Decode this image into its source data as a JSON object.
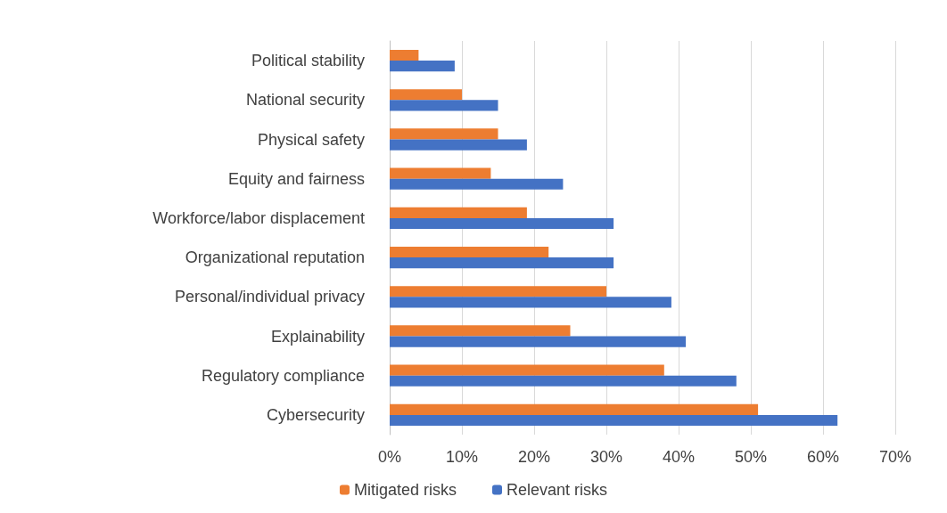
{
  "chart_data": {
    "type": "bar",
    "orientation": "horizontal",
    "categories": [
      "Political stability",
      "National security",
      "Physical safety",
      "Equity and fairness",
      "Workforce/labor displacement",
      "Organizational reputation",
      "Personal/individual privacy",
      "Explainability",
      "Regulatory compliance",
      "Cybersecurity"
    ],
    "series": [
      {
        "name": "Mitigated risks",
        "color": "#ed7d31",
        "values": [
          4,
          10,
          15,
          14,
          19,
          22,
          30,
          25,
          38,
          51
        ]
      },
      {
        "name": "Relevant risks",
        "color": "#4472c4",
        "values": [
          9,
          15,
          19,
          24,
          31,
          31,
          39,
          41,
          48,
          62
        ]
      }
    ],
    "xlim": [
      0,
      70
    ],
    "xticks": [
      {
        "value": 0,
        "label": "0%"
      },
      {
        "value": 10,
        "label": "10%"
      },
      {
        "value": 20,
        "label": "20%"
      },
      {
        "value": 30,
        "label": "30%"
      },
      {
        "value": 40,
        "label": "40%"
      },
      {
        "value": 50,
        "label": "50%"
      },
      {
        "value": 60,
        "label": "60%"
      },
      {
        "value": 70,
        "label": "70%"
      }
    ],
    "grid": "x",
    "legend": "bottom"
  }
}
